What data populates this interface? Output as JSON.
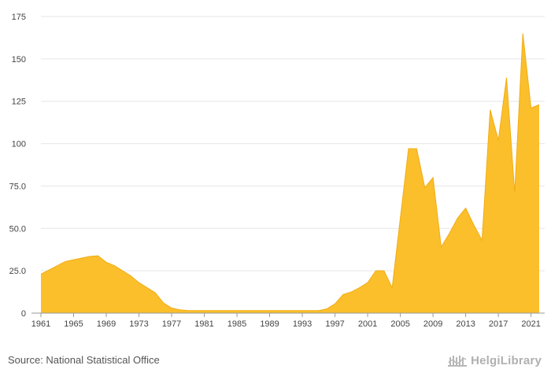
{
  "chart_data": {
    "type": "area",
    "title": "",
    "xlabel": "",
    "ylabel": "",
    "x": [
      1961,
      1962,
      1963,
      1964,
      1965,
      1966,
      1967,
      1968,
      1969,
      1970,
      1971,
      1972,
      1973,
      1974,
      1975,
      1976,
      1977,
      1978,
      1979,
      1980,
      1981,
      1982,
      1983,
      1984,
      1985,
      1986,
      1987,
      1988,
      1989,
      1990,
      1991,
      1992,
      1993,
      1994,
      1995,
      1996,
      1997,
      1998,
      1999,
      2000,
      2001,
      2002,
      2003,
      2004,
      2005,
      2006,
      2007,
      2008,
      2009,
      2010,
      2011,
      2012,
      2013,
      2014,
      2015,
      2016,
      2017,
      2018,
      2019,
      2020,
      2021,
      2022
    ],
    "values": [
      23,
      25.5,
      28,
      30.5,
      31.5,
      32.5,
      33.5,
      33.8,
      30,
      28,
      25,
      22,
      18,
      15,
      12,
      6,
      3,
      2,
      1.5,
      1.5,
      1.5,
      1.5,
      1.5,
      1.5,
      1.5,
      1.5,
      1.5,
      1.5,
      1.5,
      1.5,
      1.5,
      1.5,
      1.5,
      1.5,
      1.5,
      2.5,
      5.5,
      11,
      12.5,
      15,
      18,
      25,
      25,
      15,
      56,
      97,
      97,
      74,
      80,
      39,
      47,
      56,
      62,
      52,
      43,
      120,
      102,
      139,
      71,
      165,
      121,
      123
    ],
    "xticks": [
      1961,
      1965,
      1969,
      1973,
      1977,
      1981,
      1985,
      1989,
      1993,
      1997,
      2001,
      2005,
      2009,
      2013,
      2017,
      2021
    ],
    "yticks": [
      0,
      25,
      50,
      75,
      100,
      125,
      150,
      175
    ],
    "ytick_labels": [
      "0",
      "25.0",
      "50.0",
      "75.0",
      "100",
      "125",
      "150",
      "175"
    ],
    "ylim": [
      0,
      175
    ],
    "xlim": [
      1961,
      2022
    ],
    "grid": true,
    "colors": {
      "fill": "#fbbf2c",
      "stroke": "#f2ac14",
      "grid": "#e6e6e6",
      "axis": "#9a9a9a"
    }
  },
  "footer": {
    "source": "Source: National Statistical Office",
    "brand": "HelgiLibrary",
    "brand_icon": "library-columns-icon"
  }
}
